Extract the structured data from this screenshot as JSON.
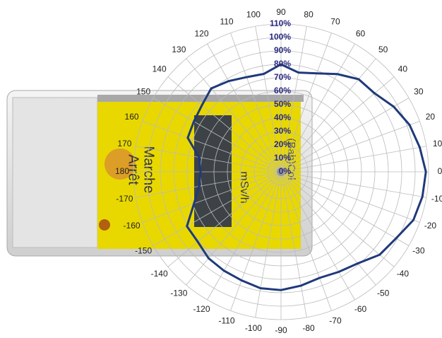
{
  "device": {
    "labels": [
      "Marche",
      "Arrêt",
      "mSv/h",
      "(Bab)Col"
    ]
  },
  "chart_data": {
    "type": "polar",
    "theta": [
      0,
      10,
      20,
      30,
      40,
      50,
      60,
      70,
      80,
      90,
      100,
      110,
      120,
      130,
      140,
      150,
      160,
      170,
      180,
      -170,
      -160,
      -150,
      -140,
      -130,
      -120,
      -110,
      -100,
      -90,
      -80,
      -70,
      -60,
      -50,
      -40,
      -30,
      -20,
      -10
    ],
    "values": [
      108,
      105,
      102,
      97,
      91,
      90,
      84,
      78,
      75,
      80,
      74,
      75,
      78,
      81,
      77,
      75,
      74,
      62,
      60,
      62,
      69,
      81,
      81,
      84,
      85,
      86,
      88,
      88,
      86,
      84,
      86,
      89,
      96,
      99,
      105,
      107
    ],
    "color": "#1f3a7a",
    "rlim": [
      0,
      110
    ],
    "rticks": [
      {
        "value": 0,
        "label": "0%"
      },
      {
        "value": 10,
        "label": "10%"
      },
      {
        "value": 20,
        "label": "20%"
      },
      {
        "value": 30,
        "label": "30%"
      },
      {
        "value": 40,
        "label": "40%"
      },
      {
        "value": 50,
        "label": "50%"
      },
      {
        "value": 60,
        "label": "60%"
      },
      {
        "value": 70,
        "label": "70%"
      },
      {
        "value": 80,
        "label": "80%"
      },
      {
        "value": 90,
        "label": "90%"
      },
      {
        "value": 100,
        "label": "100%"
      },
      {
        "value": 110,
        "label": "110%"
      }
    ],
    "grid": true
  }
}
